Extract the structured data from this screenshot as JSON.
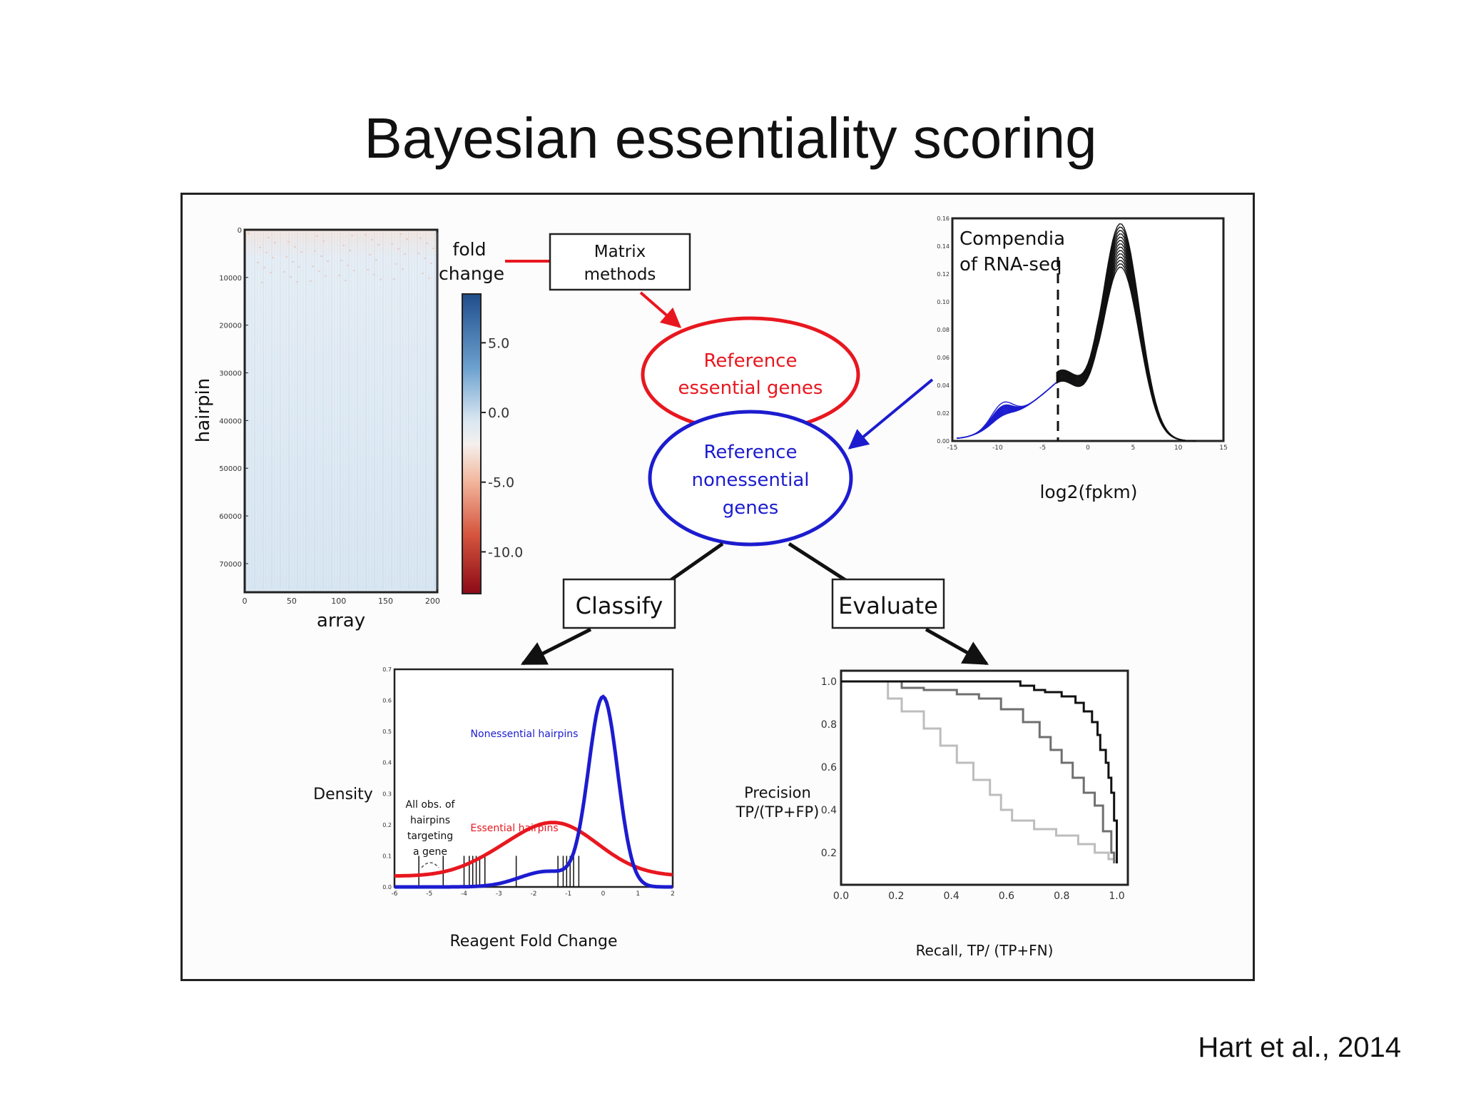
{
  "slide": {
    "title": "Bayesian essentiality scoring",
    "citation": "Hart et al., 2014"
  },
  "heatmap": {
    "ylabel": "hairpin",
    "xlabel": "array",
    "yticks": [
      "0",
      "10000",
      "20000",
      "30000",
      "40000",
      "50000",
      "60000",
      "70000"
    ],
    "xticks": [
      "0",
      "50",
      "100",
      "150",
      "200"
    ],
    "colorbar_label_line1": "fold",
    "colorbar_label_line2": "change",
    "colorbar_ticks": [
      "5.0",
      "0.0",
      "-5.0",
      "-10.0"
    ],
    "colors": {
      "high": "#1f4e8c",
      "mid": "#f4f0ee",
      "low": "#8b0a16",
      "fill": "#dfeaf3"
    }
  },
  "flow": {
    "matrix_methods_line1": "Matrix",
    "matrix_methods_line2": "methods",
    "essential_line1": "Reference",
    "essential_line2": "essential genes",
    "nonessential_line1": "Reference",
    "nonessential_line2": "nonessential",
    "nonessential_line3": "genes",
    "classify": "Classify",
    "evaluate": "Evaluate",
    "colors": {
      "red": "#e8171f",
      "blue": "#1c1ccf",
      "black": "#111111"
    }
  },
  "rnaseq": {
    "annotation_line1": "Compendia",
    "annotation_line2": "of RNA-seq",
    "xlabel": "log2(fpkm)",
    "yticks": [
      "0.00",
      "0.02",
      "0.04",
      "0.06",
      "0.08",
      "0.10",
      "0.12",
      "0.14",
      "0.16"
    ],
    "xticks": [
      "-15",
      "-10",
      "-5",
      "0",
      "5",
      "10",
      "15"
    ]
  },
  "density": {
    "ylabel": "Density",
    "xlabel": "Reagent Fold Change",
    "yticks": [
      "0.0",
      "0.1",
      "0.2",
      "0.3",
      "0.4",
      "0.5",
      "0.6",
      "0.7"
    ],
    "xticks": [
      "-6",
      "-5",
      "-4",
      "-3",
      "-2",
      "-1",
      "0",
      "1",
      "2"
    ],
    "nonessential_label": "Nonessential hairpins",
    "essential_label": "Essential hairpins",
    "annotation_line1": "All obs. of",
    "annotation_line2": "hairpins",
    "annotation_line3": "targeting",
    "annotation_line4": "a gene"
  },
  "pr": {
    "ylabel_line1": "Precision",
    "ylabel_line2": "TP/(TP+FP)",
    "xlabel": "Recall, TP/ (TP+FN)",
    "yticks": [
      "0.2",
      "0.4",
      "0.6",
      "0.8",
      "1.0"
    ],
    "xticks": [
      "0.0",
      "0.2",
      "0.4",
      "0.6",
      "0.8",
      "1.0"
    ]
  }
}
